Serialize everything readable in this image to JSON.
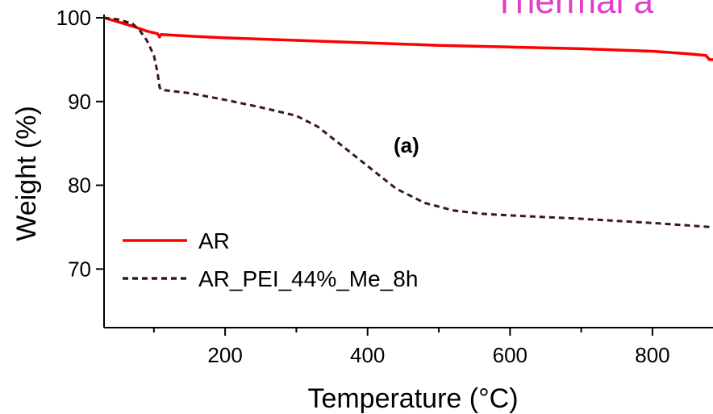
{
  "chart_data": {
    "type": "line",
    "title": "",
    "banner_text": "Thermal a",
    "banner_color": "#e040c8",
    "xlabel": "Temperature (°C)",
    "ylabel": "Weight (%)",
    "xlim": [
      30,
      885
    ],
    "ylim": [
      63,
      100
    ],
    "xticks": [
      200,
      400,
      600,
      800
    ],
    "xticks_minor": [
      100,
      300,
      500,
      700
    ],
    "yticks": [
      70,
      80,
      90,
      100
    ],
    "grid": false,
    "legend_position": "bottom-left",
    "annotation": "(a)",
    "series": [
      {
        "name": "AR",
        "color": "#ff0000",
        "style": "solid",
        "x": [
          30,
          50,
          70,
          90,
          105,
          108,
          110,
          150,
          200,
          300,
          400,
          500,
          600,
          700,
          800,
          850,
          875,
          880,
          885
        ],
        "y": [
          100,
          99.5,
          99.0,
          98.4,
          98.1,
          97.7,
          98.0,
          97.8,
          97.6,
          97.3,
          97.0,
          96.7,
          96.5,
          96.3,
          96.0,
          95.7,
          95.5,
          95.0,
          95.0
        ]
      },
      {
        "name": "AR_PEI_44%_Me_8h",
        "color": "#3a1622",
        "style": "dashed",
        "x": [
          30,
          50,
          70,
          80,
          90,
          100,
          105,
          108,
          110,
          120,
          150,
          200,
          250,
          300,
          330,
          360,
          400,
          440,
          480,
          520,
          560,
          600,
          650,
          700,
          800,
          885
        ],
        "y": [
          100,
          99.8,
          99.3,
          98.5,
          97.3,
          95.5,
          93.5,
          91.7,
          91.4,
          91.3,
          91.0,
          90.2,
          89.3,
          88.3,
          87.0,
          85.0,
          82.3,
          79.6,
          77.9,
          77.0,
          76.6,
          76.4,
          76.2,
          76.0,
          75.5,
          75.0
        ]
      }
    ]
  }
}
